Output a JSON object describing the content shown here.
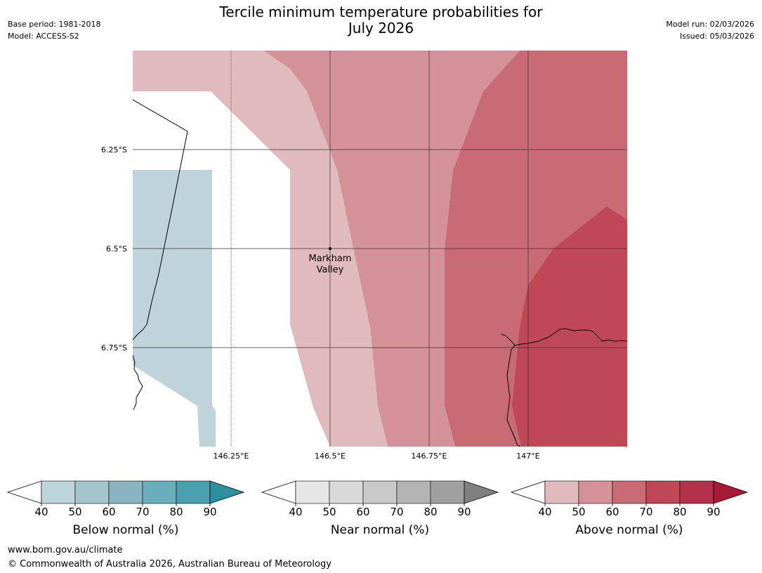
{
  "title": {
    "line1": "Tercile minimum temperature probabilities for",
    "line2": "July 2026"
  },
  "meta_left": {
    "base_period": "Base period: 1981-2018",
    "model": "Model: ACCESS-S2"
  },
  "meta_right": {
    "model_run": "Model run: 02/03/2026",
    "issued": "Issued: 05/03/2026"
  },
  "map": {
    "lat_labels": [
      "6.25°S",
      "6.5°S",
      "6.75°S"
    ],
    "lon_labels": [
      "146.25°E",
      "146.5°E",
      "146.75°E",
      "147°E"
    ],
    "location": {
      "name_line1": "Markham",
      "name_line2": "Valley"
    },
    "colors": {
      "below_40_50": "#bfd4da",
      "above_40_50": "#e1babd",
      "above_50_60": "#d59198",
      "above_60_70": "#c96b74",
      "above_70_80": "#c04856"
    }
  },
  "colorbars": [
    {
      "label": "Below normal (%)",
      "ticks": [
        "40",
        "50",
        "60",
        "70",
        "80",
        "90"
      ],
      "colors": [
        "#bdd4da",
        "#a4c5cb",
        "#87b4bf",
        "#6aaebb",
        "#4aa0ae",
        "#2e8f9e"
      ]
    },
    {
      "label": "Near normal (%)",
      "ticks": [
        "40",
        "50",
        "60",
        "70",
        "80",
        "90"
      ],
      "colors": [
        "#e6e6e6",
        "#d9d9d9",
        "#c9c9c9",
        "#b4b4b4",
        "#a0a0a0",
        "#808080"
      ]
    },
    {
      "label": "Above normal (%)",
      "ticks": [
        "40",
        "50",
        "60",
        "70",
        "80",
        "90"
      ],
      "colors": [
        "#e1babd",
        "#d59198",
        "#c96b74",
        "#c04856",
        "#b5304a",
        "#a61a35"
      ]
    }
  ],
  "footer": {
    "url": "www.bom.gov.au/climate",
    "copyright": "© Commonwealth of Australia 2026, Australian Bureau of Meteorology"
  }
}
